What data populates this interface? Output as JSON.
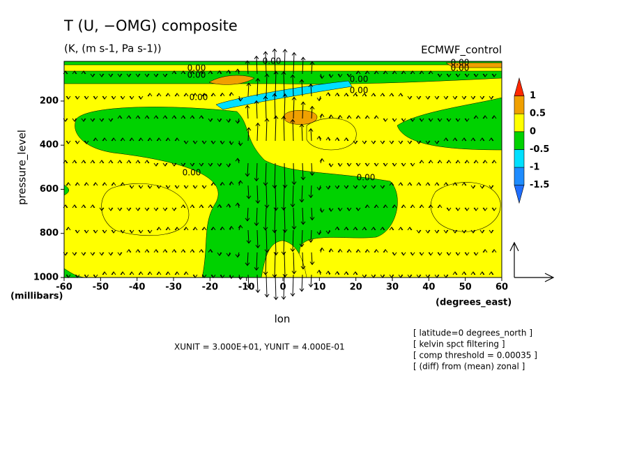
{
  "chart_data": {
    "type": "contour",
    "title": "T (U, −OMG) composite",
    "subtitle": "(K, (m s-1, Pa s-1))",
    "dataset": "ECMWF_control",
    "x_label": "lon",
    "x_unit_label": "(degrees_east)",
    "y_label": "pressure_level",
    "y_unit_label": "(millibars)",
    "xlim": [
      -60,
      60
    ],
    "xticks": [
      -60,
      -50,
      -40,
      -30,
      -20,
      -10,
      0,
      10,
      20,
      30,
      40,
      50,
      60
    ],
    "ylim": [
      1000,
      20
    ],
    "yticks": [
      1000,
      800,
      600,
      400,
      200
    ],
    "colorbar": {
      "levels": [
        -1.5,
        -1,
        -0.5,
        0,
        0.5,
        1
      ],
      "colors": [
        "#1e6eff",
        "#1e8cff",
        "#00e0ff",
        "#00d200",
        "#ffff00",
        "#f0a000",
        "#ff2800"
      ]
    },
    "contour_labels": [
      "0.00",
      "0.00",
      "0.00",
      "0.00",
      "0.00",
      "0.00",
      "0.00",
      "0.00",
      "0.00",
      "0.00"
    ],
    "vector_unit": "XUNIT = 3.000E+01, YUNIT = 4.000E-01",
    "notes": [
      "[ latitude=0 degrees_north ]",
      "[ kelvin spct filtering ]",
      "[ comp threshold = 0.00035 ]",
      "[ (diff) from (mean) zonal ]"
    ]
  }
}
